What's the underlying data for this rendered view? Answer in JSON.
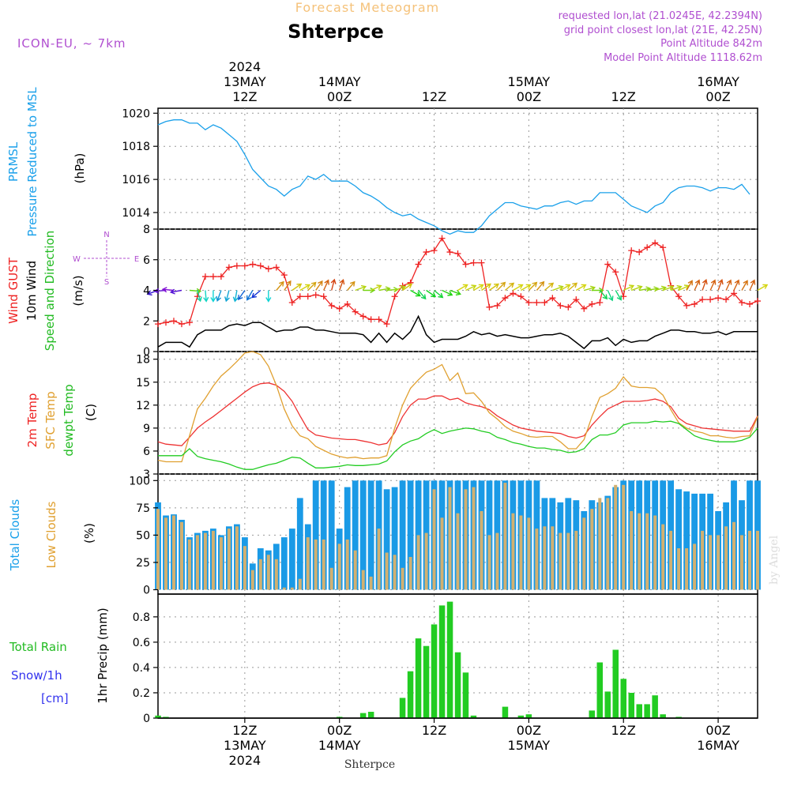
{
  "header": {
    "overtitle": "Forecast Meteogram",
    "station": "Shterpce",
    "model": "ICON-EU, ~ 7km",
    "requested": "requested lon,lat (21.0245E, 42.2394N)",
    "grid_point": "grid point closest lon,lat (21E, 42.25N)",
    "point_altitude": "Point Altitude 842m",
    "model_altitude": "Model Point Altitude 1118.62m",
    "footer_station": "Shterpce",
    "watermark": "by Angel"
  },
  "time_axis": {
    "labels": [
      {
        "t": 12,
        "lines": [
          "2024",
          "13MAY",
          "12Z"
        ],
        "bottom_lines": [
          "12Z",
          "13MAY",
          "2024"
        ]
      },
      {
        "t": 24,
        "lines": [
          "14MAY",
          "00Z"
        ],
        "bottom_lines": [
          "00Z",
          "14MAY"
        ]
      },
      {
        "t": 36,
        "lines": [
          "12Z"
        ],
        "bottom_lines": [
          "12Z"
        ]
      },
      {
        "t": 48,
        "lines": [
          "15MAY",
          "00Z"
        ],
        "bottom_lines": [
          "00Z",
          "15MAY"
        ]
      },
      {
        "t": 60,
        "lines": [
          "12Z"
        ],
        "bottom_lines": [
          "12Z"
        ]
      },
      {
        "t": 72,
        "lines": [
          "16MAY",
          "00Z"
        ],
        "bottom_lines": [
          "00Z",
          "16MAY"
        ]
      }
    ],
    "x_range": [
      1,
      77
    ]
  },
  "panels": {
    "pressure": {
      "labels": [
        {
          "text": "PRMSL",
          "color": "#1aa0ea"
        },
        {
          "text": "Pressure Reduced to MSL",
          "color": "#1aa0ea"
        },
        {
          "text": "(hPa)",
          "color": "#000000"
        }
      ],
      "ticks": [
        "1014",
        "1016",
        "1018",
        "1020"
      ]
    },
    "wind": {
      "labels": [
        {
          "text": "Wind GUST",
          "color": "#ee2222"
        },
        {
          "text": "10m Wind",
          "color": "#000000"
        },
        {
          "text": "Speed and Direction",
          "color": "#22bb22"
        },
        {
          "text": "(m/s)",
          "color": "#000000"
        }
      ],
      "ticks": [
        "0",
        "2",
        "4",
        "6",
        "8"
      ],
      "compass": {
        "n": "N",
        "s": "S",
        "w": "W",
        "e": "E"
      }
    },
    "temp": {
      "labels": [
        {
          "text": "2m Temp",
          "color": "#ee2222"
        },
        {
          "text": "SFC Temp",
          "color": "#e0a030"
        },
        {
          "text": "dewpt Temp",
          "color": "#22bb22"
        },
        {
          "text": "(C)",
          "color": "#000000"
        }
      ],
      "ticks": [
        "3",
        "6",
        "9",
        "12",
        "15",
        "18"
      ]
    },
    "clouds": {
      "labels": [
        {
          "text": "Total Clouds",
          "color": "#1aa0ea"
        },
        {
          "text": "Low Clouds",
          "color": "#e0a030"
        },
        {
          "text": "(%)",
          "color": "#000000"
        }
      ],
      "ticks": [
        "0",
        "25",
        "50",
        "75",
        "100"
      ]
    },
    "precip": {
      "left_labels": [
        {
          "text": "Total  Rain",
          "color": "#22bb22"
        },
        {
          "text": "Snow/1h",
          "color": "#3333ee"
        },
        {
          "text": "[cm]",
          "color": "#3333ee"
        }
      ],
      "axis_label": "1hr Precip (mm)",
      "ticks": [
        "0",
        "0.2",
        "0.4",
        "0.6",
        "0.8"
      ]
    }
  },
  "colors": {
    "pressure": "#1aa0ea",
    "gust": "#ee2222",
    "wind": "#000000",
    "temp2m": "#ee3333",
    "sfc": "#e0a030",
    "dew": "#22cc22",
    "total_clouds": "#1a9ae6",
    "low_clouds": "#d2b070",
    "rain": "#22cc22",
    "header_orange": "#f5c27a",
    "header_purple": "#b04fd0"
  },
  "chart_data": [
    {
      "type": "line",
      "title": "PRMSL",
      "ylabel": "(hPa)",
      "ylim": [
        1013.0,
        1020.3
      ],
      "x_start": 1,
      "x_step": 1,
      "series": [
        {
          "name": "PRMSL",
          "values": [
            1019.3,
            1019.5,
            1019.6,
            1019.6,
            1019.4,
            1019.4,
            1019.0,
            1019.3,
            1019.1,
            1018.7,
            1018.3,
            1017.5,
            1016.6,
            1016.1,
            1015.6,
            1015.4,
            1015.0,
            1015.4,
            1015.6,
            1016.2,
            1016.0,
            1016.3,
            1015.9,
            1015.9,
            1015.9,
            1015.6,
            1015.2,
            1015.0,
            1014.7,
            1014.3,
            1014.0,
            1013.8,
            1013.9,
            1013.6,
            1013.4,
            1013.2,
            1012.9,
            1012.7,
            1012.9,
            1012.8,
            1012.8,
            1013.2,
            1013.8,
            1014.2,
            1014.6,
            1014.6,
            1014.4,
            1014.3,
            1014.2,
            1014.4,
            1014.4,
            1014.6,
            1014.7,
            1014.5,
            1014.7,
            1014.7,
            1015.2,
            1015.2,
            1015.2,
            1014.8,
            1014.4,
            1014.2,
            1014.0,
            1014.4,
            1014.6,
            1015.2,
            1015.5,
            1015.6,
            1015.6,
            1015.5,
            1015.3,
            1015.5,
            1015.5,
            1015.4,
            1015.7,
            1015.1
          ]
        }
      ]
    },
    {
      "type": "line",
      "title": "Wind",
      "ylabel": "(m/s)",
      "ylim": [
        0,
        8
      ],
      "x_start": 1,
      "x_step": 1,
      "series": [
        {
          "name": "Wind GUST",
          "values": [
            1.8,
            1.9,
            2.0,
            1.8,
            1.9,
            3.6,
            4.9,
            4.9,
            4.9,
            5.5,
            5.6,
            5.6,
            5.7,
            5.6,
            5.4,
            5.5,
            5.0,
            3.2,
            3.6,
            3.6,
            3.7,
            3.6,
            3.0,
            2.8,
            3.1,
            2.6,
            2.3,
            2.1,
            2.1,
            1.8,
            3.6,
            4.3,
            4.5,
            5.7,
            6.5,
            6.6,
            7.4,
            6.5,
            6.4,
            5.7,
            5.8,
            5.8,
            2.9,
            3.0,
            3.5,
            3.8,
            3.6,
            3.2,
            3.2,
            3.2,
            3.5,
            3.0,
            2.9,
            3.4,
            2.8,
            3.1,
            3.2,
            5.7,
            5.2,
            3.6,
            6.6,
            6.5,
            6.8,
            7.1,
            6.8,
            4.3,
            3.6,
            3.0,
            3.1,
            3.4,
            3.4,
            3.5,
            3.4,
            3.8,
            3.2,
            3.1,
            3.3
          ]
        },
        {
          "name": "10m Wind",
          "values": [
            0.3,
            0.6,
            0.6,
            0.6,
            0.3,
            1.1,
            1.4,
            1.4,
            1.4,
            1.7,
            1.8,
            1.7,
            1.9,
            1.9,
            1.6,
            1.3,
            1.4,
            1.4,
            1.6,
            1.6,
            1.4,
            1.4,
            1.3,
            1.2,
            1.2,
            1.2,
            1.1,
            0.6,
            1.2,
            0.6,
            1.2,
            0.8,
            1.3,
            2.3,
            1.1,
            0.6,
            0.8,
            0.8,
            0.8,
            1.0,
            1.3,
            1.1,
            1.2,
            1.0,
            1.1,
            1.0,
            0.9,
            0.9,
            1.0,
            1.1,
            1.1,
            1.2,
            1.0,
            0.6,
            0.2,
            0.7,
            0.7,
            0.9,
            0.4,
            0.8,
            0.6,
            0.7,
            0.7,
            1.0,
            1.2,
            1.4,
            1.4,
            1.3,
            1.3,
            1.2,
            1.2,
            1.3,
            1.1,
            1.3,
            1.3,
            1.3,
            1.3
          ]
        }
      ]
    },
    {
      "type": "line",
      "title": "Temperature",
      "ylabel": "(C)",
      "ylim": [
        3,
        19
      ],
      "x_start": 1,
      "x_step": 1,
      "series": [
        {
          "name": "2m Temp",
          "values": [
            7.2,
            6.9,
            6.8,
            6.7,
            7.8,
            9.0,
            9.8,
            10.5,
            11.3,
            12.1,
            12.9,
            13.7,
            14.4,
            14.8,
            14.9,
            14.6,
            13.8,
            12.5,
            10.6,
            8.8,
            8.1,
            7.9,
            7.7,
            7.6,
            7.5,
            7.5,
            7.3,
            7.1,
            6.8,
            7.0,
            8.4,
            10.5,
            12.0,
            12.8,
            12.8,
            13.2,
            13.2,
            12.7,
            12.9,
            12.3,
            12.0,
            11.8,
            11.4,
            10.6,
            10.0,
            9.4,
            9.0,
            8.8,
            8.6,
            8.5,
            8.4,
            8.3,
            7.9,
            7.7,
            8.0,
            9.4,
            10.5,
            11.5,
            12.0,
            12.5,
            12.5,
            12.5,
            12.6,
            12.8,
            12.5,
            11.8,
            10.3,
            9.6,
            9.3,
            9.0,
            8.9,
            8.8,
            8.7,
            8.6,
            8.6,
            8.6,
            10.6
          ]
        },
        {
          "name": "SFC Temp",
          "values": [
            4.8,
            4.6,
            4.6,
            4.6,
            8.0,
            11.5,
            12.9,
            14.5,
            15.8,
            16.7,
            17.7,
            18.8,
            19.0,
            18.6,
            17.1,
            14.6,
            11.5,
            9.3,
            8.0,
            7.6,
            6.6,
            6.1,
            5.6,
            5.3,
            5.1,
            5.2,
            5.0,
            5.1,
            5.1,
            5.4,
            9.0,
            12.0,
            14.2,
            15.3,
            16.3,
            16.7,
            17.3,
            15.2,
            16.2,
            13.5,
            13.6,
            12.5,
            11.0,
            10.2,
            9.2,
            8.6,
            8.3,
            7.9,
            7.8,
            7.9,
            7.9,
            7.2,
            6.3,
            6.3,
            7.5,
            10.5,
            13.0,
            13.5,
            14.2,
            15.7,
            14.5,
            14.3,
            14.3,
            14.2,
            13.3,
            11.4,
            9.7,
            9.0,
            8.6,
            8.4,
            8.0,
            8.0,
            7.8,
            7.7,
            7.9,
            8.0,
            10.5
          ]
        },
        {
          "name": "dewpt Temp",
          "values": [
            5.4,
            5.4,
            5.4,
            5.4,
            6.3,
            5.3,
            5.0,
            4.8,
            4.6,
            4.3,
            3.9,
            3.6,
            3.6,
            3.9,
            4.2,
            4.4,
            4.8,
            5.2,
            5.1,
            4.4,
            3.8,
            3.8,
            3.9,
            4.0,
            4.2,
            4.1,
            4.1,
            4.2,
            4.3,
            4.7,
            5.9,
            6.8,
            7.3,
            7.6,
            8.3,
            8.8,
            8.3,
            8.6,
            8.8,
            9.0,
            8.9,
            8.6,
            8.4,
            7.8,
            7.5,
            7.1,
            6.9,
            6.6,
            6.4,
            6.4,
            6.2,
            6.1,
            5.8,
            5.9,
            6.3,
            7.5,
            8.1,
            8.1,
            8.4,
            9.4,
            9.7,
            9.7,
            9.7,
            9.9,
            9.8,
            9.9,
            9.6,
            8.8,
            8.0,
            7.6,
            7.4,
            7.2,
            7.2,
            7.2,
            7.4,
            7.8,
            9.0
          ]
        }
      ]
    },
    {
      "type": "bar",
      "title": "Clouds",
      "ylabel": "(%)",
      "ylim": [
        0,
        100
      ],
      "x_start": 1,
      "x_step": 1,
      "series": [
        {
          "name": "Total Clouds",
          "values": [
            80,
            68,
            69,
            64,
            48,
            52,
            54,
            56,
            50,
            58,
            60,
            48,
            24,
            38,
            36,
            42,
            48,
            56,
            84,
            60,
            100,
            100,
            100,
            56,
            94,
            100,
            100,
            100,
            100,
            92,
            94,
            100,
            100,
            100,
            100,
            100,
            100,
            100,
            100,
            100,
            100,
            100,
            100,
            100,
            100,
            100,
            100,
            100,
            100,
            84,
            84,
            80,
            84,
            82,
            72,
            82,
            80,
            86,
            94,
            100,
            100,
            100,
            100,
            100,
            100,
            100,
            92,
            90,
            88,
            88,
            88,
            72,
            80,
            100,
            82,
            100,
            100
          ]
        },
        {
          "name": "Low Clouds",
          "values": [
            74,
            66,
            68,
            62,
            46,
            50,
            52,
            54,
            48,
            56,
            58,
            40,
            18,
            28,
            32,
            28,
            2,
            2,
            10,
            48,
            46,
            46,
            20,
            42,
            46,
            36,
            18,
            12,
            56,
            34,
            32,
            20,
            30,
            50,
            52,
            92,
            66,
            94,
            70,
            92,
            94,
            72,
            50,
            52,
            98,
            70,
            68,
            66,
            56,
            58,
            58,
            52,
            52,
            54,
            66,
            74,
            84,
            84,
            96,
            96,
            72,
            70,
            70,
            68,
            60,
            54,
            38,
            38,
            42,
            54,
            50,
            50,
            58,
            62,
            50,
            54,
            54
          ]
        }
      ]
    },
    {
      "type": "bar",
      "title": "1hr Precip",
      "ylabel": "1hr Precip (mm)",
      "ylim": [
        0,
        0.98
      ],
      "x_start": 1,
      "x_step": 1,
      "series": [
        {
          "name": "Total Rain",
          "values": [
            0.02,
            0.01,
            0,
            0,
            0,
            0,
            0,
            0,
            0,
            0,
            0,
            0,
            0,
            0,
            0,
            0,
            0,
            0,
            0,
            0,
            0,
            0,
            0,
            0.01,
            0,
            0,
            0.04,
            0.05,
            0,
            0,
            0,
            0.16,
            0.37,
            0.63,
            0.57,
            0.74,
            0.89,
            0.92,
            0.52,
            0.36,
            0.02,
            0,
            0,
            0,
            0.09,
            0,
            0.02,
            0.03,
            0,
            0,
            0,
            0,
            0,
            0,
            0,
            0.06,
            0.44,
            0.21,
            0.54,
            0.31,
            0.2,
            0.11,
            0.11,
            0.18,
            0.03,
            0,
            0.01,
            0,
            0,
            0,
            0,
            0,
            0,
            0,
            0,
            0,
            0
          ]
        }
      ]
    },
    {
      "type": "scatter",
      "title": "10m Wind Direction",
      "x_start": 1,
      "x_step": 1,
      "series": [
        {
          "name": "Direction (deg, toward)",
          "values": [
            250,
            265,
            275,
            260,
            95,
            165,
            175,
            180,
            200,
            195,
            190,
            215,
            210,
            230,
            180,
            40,
            35,
            55,
            60,
            45,
            35,
            25,
            15,
            20,
            40,
            70,
            90,
            65,
            80,
            85,
            70,
            55,
            120,
            140,
            125,
            130,
            115,
            110,
            60,
            65,
            60,
            55,
            55,
            45,
            50,
            60,
            60,
            45,
            40,
            50,
            70,
            60,
            50,
            60,
            75,
            90,
            140,
            155,
            150,
            65,
            70,
            80,
            80,
            75,
            70,
            70,
            65,
            30,
            25,
            20,
            25,
            20,
            25,
            25,
            30,
            25,
            60
          ]
        }
      ]
    }
  ]
}
